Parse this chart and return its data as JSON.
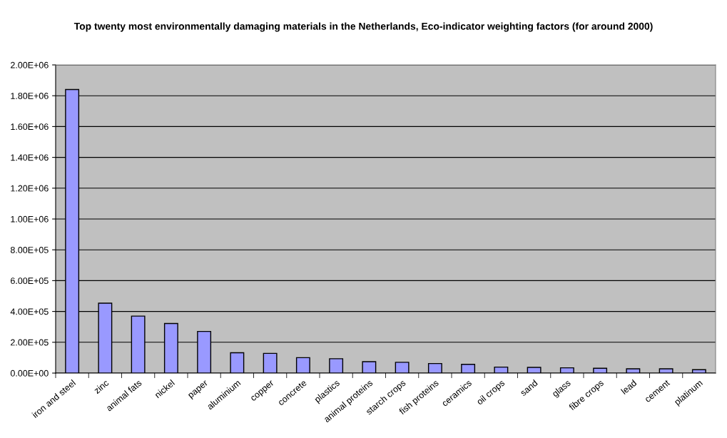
{
  "chart_data": {
    "type": "bar",
    "title": "Top twenty most environmentally damaging materials in the Netherlands, Eco-indicator weighting factors (for around 2000)",
    "categories": [
      "iron and steel",
      "zinc",
      "animal fats",
      "nickel",
      "paper",
      "aluminium",
      "copper",
      "concrete",
      "plastics",
      "animal proteins",
      "starch crops",
      "fish proteins",
      "ceramics",
      "oil crops",
      "sand",
      "glass",
      "fibre crops",
      "lead",
      "cement",
      "platinum"
    ],
    "values": [
      1840000,
      454000,
      370000,
      322000,
      270000,
      132000,
      128000,
      100000,
      93000,
      74000,
      70000,
      62000,
      57000,
      39000,
      37000,
      34000,
      31000,
      28000,
      28000,
      22000
    ],
    "color": "#9999ff",
    "ylim": [
      0,
      2000000
    ],
    "yticks": [
      {
        "value": 0,
        "label": "0.00E+00"
      },
      {
        "value": 200000,
        "label": "2.00E+05"
      },
      {
        "value": 400000,
        "label": "4.00E+05"
      },
      {
        "value": 600000,
        "label": "6.00E+05"
      },
      {
        "value": 800000,
        "label": "8.00E+05"
      },
      {
        "value": 1000000,
        "label": "1.00E+06"
      },
      {
        "value": 1200000,
        "label": "1.20E+06"
      },
      {
        "value": 1400000,
        "label": "1.40E+06"
      },
      {
        "value": 1600000,
        "label": "1.60E+06"
      },
      {
        "value": 1800000,
        "label": "1.80E+06"
      },
      {
        "value": 2000000,
        "label": "2.00E+06"
      }
    ],
    "grid": "y"
  }
}
